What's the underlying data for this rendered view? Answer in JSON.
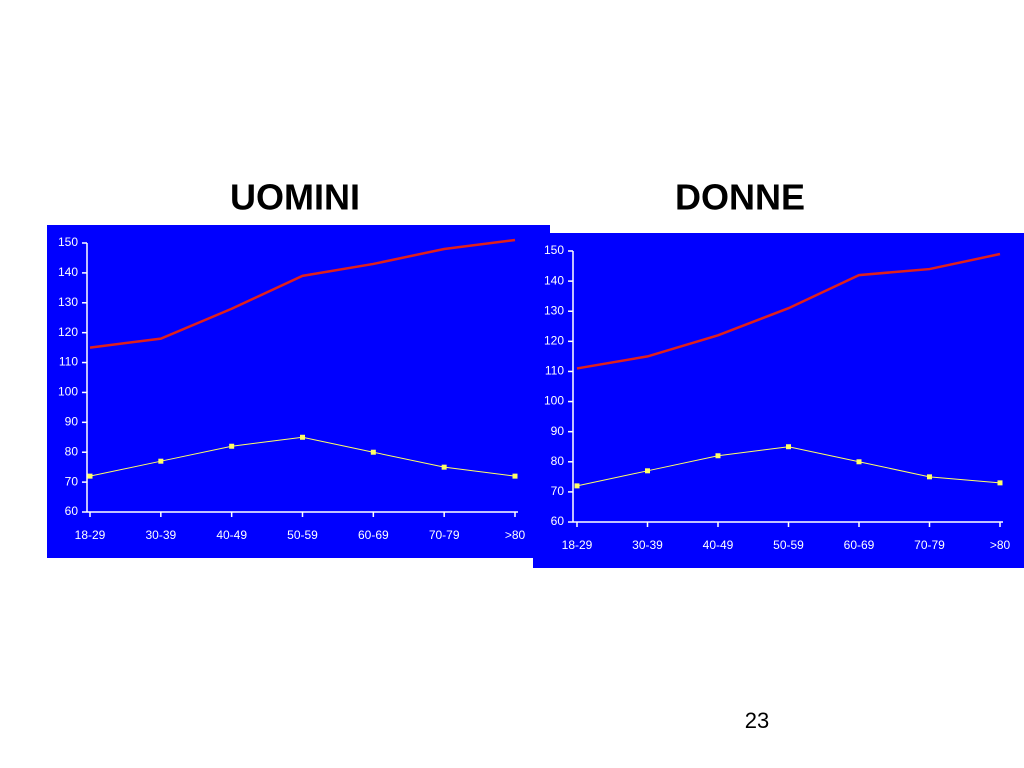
{
  "chart_data": [
    {
      "type": "line",
      "title": "UOMINI",
      "categories": [
        "18-29",
        "30-39",
        "40-49",
        "50-59",
        "60-69",
        "70-79",
        ">80"
      ],
      "series": [
        {
          "color": "#e0201b",
          "values": [
            115,
            118,
            128,
            139,
            143,
            148,
            151
          ]
        },
        {
          "color": "#ffff66",
          "marker": "square",
          "values": [
            72,
            77,
            82,
            85,
            80,
            75,
            72
          ]
        }
      ],
      "ylim": [
        60,
        150
      ],
      "yticks": [
        60,
        70,
        80,
        90,
        100,
        110,
        120,
        130,
        140,
        150
      ],
      "grid": false,
      "background": "#0000ff"
    },
    {
      "type": "line",
      "title": "DONNE",
      "categories": [
        "18-29",
        "30-39",
        "40-49",
        "50-59",
        "60-69",
        "70-79",
        ">80"
      ],
      "series": [
        {
          "color": "#e0201b",
          "values": [
            111,
            115,
            122,
            131,
            142,
            144,
            149
          ]
        },
        {
          "color": "#ffff66",
          "marker": "square",
          "values": [
            72,
            77,
            82,
            85,
            80,
            75,
            73
          ]
        }
      ],
      "ylim": [
        60,
        150
      ],
      "yticks": [
        60,
        70,
        80,
        90,
        100,
        110,
        120,
        130,
        140,
        150
      ],
      "grid": false,
      "background": "#0000ff"
    }
  ],
  "page_number": "23"
}
